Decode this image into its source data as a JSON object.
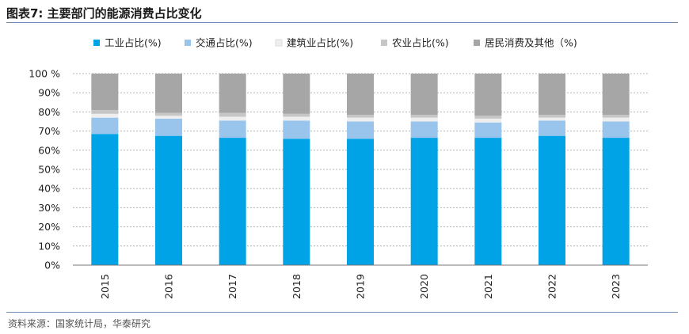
{
  "page": {
    "title": "图表7:  主要部门的能源消费占比变化",
    "source": "资料来源：国家统计局，华泰研究"
  },
  "chart_data": {
    "type": "bar",
    "stacked": true,
    "categories": [
      "2015",
      "2016",
      "2017",
      "2018",
      "2019",
      "2020",
      "2021",
      "2022",
      "2023"
    ],
    "series": [
      {
        "name": "工业占比(%)",
        "color": "#00a3e5",
        "values": [
          68.5,
          67.5,
          66.5,
          66.0,
          66.0,
          66.5,
          66.5,
          67.5,
          66.5
        ]
      },
      {
        "name": "交通占比(%)",
        "color": "#99c5ec",
        "values": [
          8.5,
          9.0,
          9.0,
          9.5,
          9.0,
          8.5,
          8.0,
          8.0,
          8.5
        ]
      },
      {
        "name": "建筑业占比(%)",
        "color": "#eeeeee",
        "values": [
          2.0,
          1.5,
          2.0,
          2.0,
          2.0,
          2.0,
          2.0,
          1.5,
          2.0
        ]
      },
      {
        "name": "农业占比(%)",
        "color": "#c6c6c6",
        "values": [
          2.0,
          1.5,
          2.0,
          1.5,
          1.5,
          1.5,
          1.5,
          1.5,
          1.5
        ]
      },
      {
        "name": "居民消费及其他（%)",
        "color": "#a6a6a6",
        "values": [
          19.0,
          20.5,
          20.5,
          21.0,
          21.5,
          21.5,
          22.0,
          21.5,
          21.5
        ]
      }
    ],
    "yticks": [
      "0%",
      "10%",
      "20%",
      "30%",
      "40%",
      "50%",
      "60%",
      "70%",
      "80%",
      "90%",
      "100 %"
    ],
    "ylim": [
      0,
      100
    ],
    "grid": true,
    "legend": "top"
  }
}
